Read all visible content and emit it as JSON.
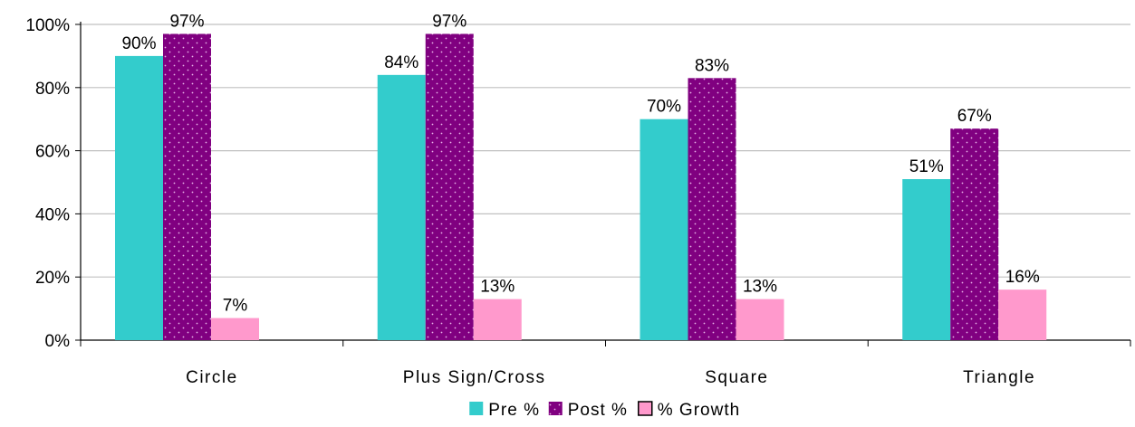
{
  "chart_data": {
    "type": "bar",
    "categories": [
      "Circle",
      "Plus Sign/Cross",
      "Square",
      "Triangle"
    ],
    "series": [
      {
        "name": "Pre %",
        "values": [
          90,
          84,
          70,
          51
        ],
        "color": "#33CCCC",
        "pattern": "solid"
      },
      {
        "name": "Post %",
        "values": [
          97,
          97,
          83,
          67
        ],
        "color": "#800080",
        "pattern": "dotted"
      },
      {
        "name": "% Growth",
        "values": [
          7,
          13,
          13,
          16
        ],
        "color": "#FF99CC",
        "pattern": "solid"
      }
    ],
    "data_labels": [
      [
        "90%",
        "84%",
        "70%",
        "51%"
      ],
      [
        "97%",
        "97%",
        "83%",
        "67%"
      ],
      [
        "7%",
        "13%",
        "13%",
        "16%"
      ]
    ],
    "yticks": [
      "0%",
      "20%",
      "40%",
      "60%",
      "80%",
      "100%"
    ],
    "ylim": [
      0,
      100
    ],
    "grid": true,
    "legend": "bottom",
    "title": "",
    "xlabel": "",
    "ylabel": ""
  }
}
